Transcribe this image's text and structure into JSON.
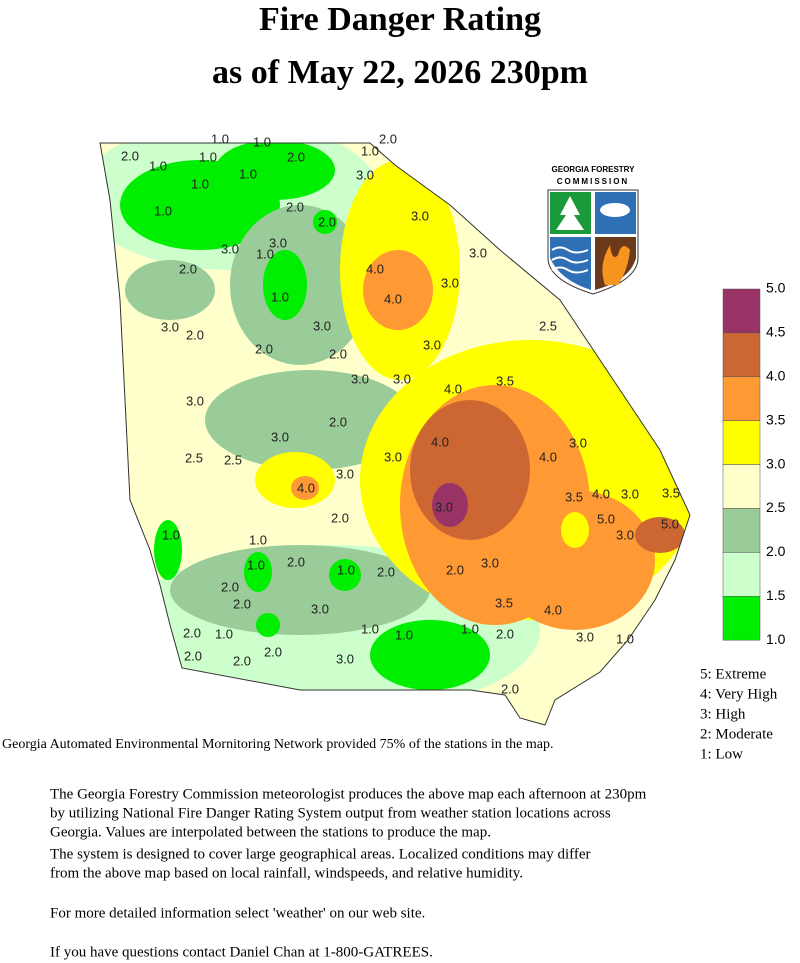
{
  "header": {
    "title_line1": "Fire Danger Rating",
    "title_line2": "as of May  22,  2026 230pm"
  },
  "logo": {
    "line1": "GEORGIA FORESTRY",
    "line2": "COMMISSION"
  },
  "map": {
    "labels": [
      "1.0",
      "1.0",
      "2.0",
      "2.0",
      "1.0",
      "1.0",
      "1.0",
      "2.0",
      "1.0",
      "3.0",
      "1.0",
      "1.0",
      "2.0",
      "2.0",
      "3.0",
      "3.0",
      "3.0",
      "3.0",
      "2.0",
      "1.0",
      "4.0",
      "4.0",
      "1.0",
      "3.0",
      "2.5",
      "3.0",
      "2.0",
      "3.0",
      "3.0",
      "2.0",
      "2.0",
      "3.0",
      "3.0",
      "3.5",
      "4.0",
      "3.0",
      "2.0",
      "3.0",
      "4.0",
      "2.5",
      "2.5",
      "3.0",
      "4.0",
      "3.0",
      "3.0",
      "4.0",
      "3.0",
      "3.5",
      "4.0",
      "3.0",
      "3.5",
      "5.0",
      "5.0",
      "3.0",
      "2.0",
      "1.0",
      "1.0",
      "2.0",
      "1.0",
      "2.0",
      "1.0",
      "2.0",
      "2.0",
      "3.0",
      "3.5",
      "4.0",
      "2.0",
      "3.0",
      "2.0",
      "1.0",
      "1.0",
      "1.0",
      "1.0",
      "2.0",
      "3.0",
      "1.0",
      "2.0",
      "2.0",
      "2.0",
      "3.0",
      "2.0"
    ]
  },
  "legend": {
    "ticks": [
      "5.0",
      "4.5",
      "4.0",
      "3.5",
      "3.0",
      "2.5",
      "2.0",
      "1.5",
      "1.0"
    ],
    "colors": [
      "#993366",
      "#cc6633",
      "#ff9933",
      "#ffff00",
      "#ffffcc",
      "#99cc99",
      "#ccffcc",
      "#00ee00"
    ],
    "levels": [
      "5: Extreme",
      "4: Very High",
      "3: High",
      "2: Moderate",
      "1: Low"
    ]
  },
  "note": "Georgia Automated Environmental Mornitoring Network provided 75% of the stations in the map.",
  "footer": {
    "lines": [
      "The Georgia Forestry Commission meteorologist produces the above map each afternoon at 230pm",
      "by utilizing National Fire Danger Rating System output from weather station locations across",
      "Georgia.  Values are interpolated between the stations to produce the map.",
      "The system is designed to cover large geographical areas. Localized conditions may differ",
      "from the above map based on local rainfall, windspeeds, and relative humidity.",
      "For more detailed information select 'weather' on our web site.",
      "If you have questions contact Daniel Chan at 1-800-GATREES."
    ]
  }
}
